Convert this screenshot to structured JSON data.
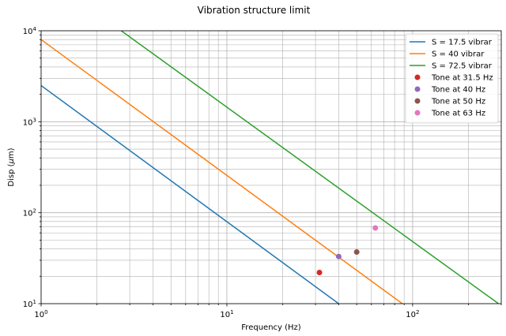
{
  "chart_data": {
    "type": "line",
    "title": "Vibration structure limit",
    "xlabel": "Frequency (Hz)",
    "ylabel_prefix": "Disp (",
    "ylabel_unit_greek": "μ",
    "ylabel_suffix": "m)",
    "x_scale": "log",
    "y_scale": "log",
    "xlim": [
      1,
      300
    ],
    "ylim": [
      10,
      10000
    ],
    "grid": true,
    "legend_position": "top-right",
    "x_ticks": [
      {
        "value": 1,
        "base": "10",
        "exp": "0"
      },
      {
        "value": 10,
        "base": "10",
        "exp": "1"
      },
      {
        "value": 100,
        "base": "10",
        "exp": "2"
      }
    ],
    "y_ticks": [
      {
        "value": 10,
        "base": "10",
        "exp": "1"
      },
      {
        "value": 100,
        "base": "10",
        "exp": "2"
      },
      {
        "value": 1000,
        "base": "10",
        "exp": "3"
      },
      {
        "value": 10000,
        "base": "10",
        "exp": "4"
      }
    ],
    "series": [
      {
        "name": "S = 17.5 vibrar",
        "kind": "line",
        "color": "#1f77b4",
        "x": [
          1,
          40
        ],
        "y": [
          2500,
          10
        ]
      },
      {
        "name": "S = 40 vibrar",
        "kind": "line",
        "color": "#ff7f0e",
        "x": [
          1,
          88
        ],
        "y": [
          8000,
          10
        ]
      },
      {
        "name": "S = 72.5 vibrar",
        "kind": "line",
        "color": "#2ca02c",
        "x": [
          2.7,
          290
        ],
        "y": [
          10000,
          10
        ]
      },
      {
        "name": "Tone at 31.5 Hz",
        "kind": "point",
        "color": "#d62728",
        "x": [
          31.5
        ],
        "y": [
          22
        ]
      },
      {
        "name": "Tone at 40 Hz",
        "kind": "point",
        "color": "#9467bd",
        "x": [
          40
        ],
        "y": [
          33
        ]
      },
      {
        "name": "Tone at 50 Hz",
        "kind": "point",
        "color": "#8c564b",
        "x": [
          50
        ],
        "y": [
          37
        ]
      },
      {
        "name": "Tone at 63 Hz",
        "kind": "point",
        "color": "#e377c2",
        "x": [
          63
        ],
        "y": [
          68
        ]
      }
    ]
  }
}
